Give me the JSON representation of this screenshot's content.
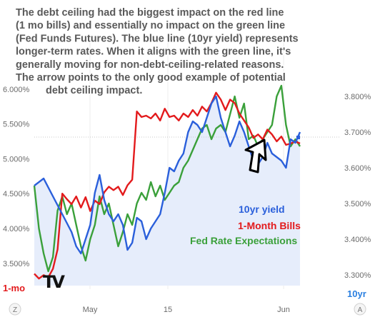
{
  "annotation": {
    "lines": [
      "The debt ceiling had the biggest impact on the red line",
      "(1 mo bills) and essentially no impact on the green line",
      "(Fed Funds Futures).  The blue line (10yr yield) represents",
      "longer-term rates.  When it aligns with the green line, it's",
      "generally moving for non-debt-ceiling-related reasons.",
      "The arrow points to the only good example of potential",
      "debt ceiling impact."
    ]
  },
  "footer": {
    "left_corner": "Z",
    "right_corner": "A",
    "left_axis_name": "1-mo",
    "right_axis_name": "10yr",
    "logo_text": "TV"
  },
  "colors": {
    "bills": "#e31a1c",
    "yield": "#2a5fdb",
    "fed": "#3aa03a",
    "fill": "#e6edfb"
  },
  "chart_data": {
    "type": "line",
    "x_tick_labels": [
      "May",
      "15",
      "Jun"
    ],
    "left_axis": {
      "ticks": [
        "3.500%",
        "4.000%",
        "4.500%",
        "5.000%",
        "5.500%",
        "6.000%"
      ],
      "ylim": [
        3.18,
        6.05
      ]
    },
    "right_axis": {
      "ticks": [
        "3.300%",
        "3.400%",
        "3.500%",
        "3.600%",
        "3.700%",
        "3.800%"
      ],
      "ylim": [
        3.27,
        3.83
      ]
    },
    "legend": [
      "10yr yield",
      "1-Month Bills",
      "Fed Rate Expectations"
    ],
    "series": [
      {
        "name": "10yr yield",
        "axis": "right",
        "points": [
          [
            0,
            3.55
          ],
          [
            2,
            3.57
          ],
          [
            4,
            3.52
          ],
          [
            6,
            3.47
          ],
          [
            8,
            3.42
          ],
          [
            9,
            3.38
          ],
          [
            10,
            3.36
          ],
          [
            11,
            3.4
          ],
          [
            12,
            3.44
          ],
          [
            13,
            3.53
          ],
          [
            14,
            3.58
          ],
          [
            15,
            3.51
          ],
          [
            16,
            3.47
          ],
          [
            17,
            3.45
          ],
          [
            18,
            3.47
          ],
          [
            19,
            3.44
          ],
          [
            20,
            3.37
          ],
          [
            21,
            3.39
          ],
          [
            22,
            3.46
          ],
          [
            23,
            3.45
          ],
          [
            24,
            3.4
          ],
          [
            25,
            3.43
          ],
          [
            26,
            3.45
          ],
          [
            27,
            3.47
          ],
          [
            28,
            3.53
          ],
          [
            29,
            3.6
          ],
          [
            30,
            3.59
          ],
          [
            31,
            3.62
          ],
          [
            32,
            3.64
          ],
          [
            33,
            3.7
          ],
          [
            34,
            3.73
          ],
          [
            35,
            3.72
          ],
          [
            36,
            3.7
          ],
          [
            37,
            3.74
          ],
          [
            38,
            3.78
          ],
          [
            39,
            3.8
          ],
          [
            40,
            3.74
          ],
          [
            41,
            3.7
          ],
          [
            42,
            3.66
          ],
          [
            43,
            3.69
          ],
          [
            44,
            3.73
          ],
          [
            45,
            3.7
          ],
          [
            46,
            3.66
          ],
          [
            47,
            3.62
          ],
          [
            48,
            3.61
          ],
          [
            49,
            3.63
          ],
          [
            50,
            3.67
          ],
          [
            51,
            3.64
          ],
          [
            52,
            3.63
          ],
          [
            53,
            3.62
          ],
          [
            54,
            3.6
          ],
          [
            55,
            3.68
          ],
          [
            56,
            3.67
          ],
          [
            57,
            3.7
          ]
        ]
      },
      {
        "name": "1-Month Bills",
        "axis": "left",
        "points": [
          [
            0,
            3.35
          ],
          [
            1,
            3.28
          ],
          [
            2,
            3.33
          ],
          [
            3,
            3.3
          ],
          [
            4,
            3.42
          ],
          [
            5,
            3.7
          ],
          [
            6,
            4.5
          ],
          [
            7,
            4.42
          ],
          [
            8,
            4.35
          ],
          [
            9,
            4.46
          ],
          [
            10,
            4.3
          ],
          [
            11,
            4.45
          ],
          [
            12,
            4.25
          ],
          [
            13,
            4.4
          ],
          [
            14,
            4.35
          ],
          [
            15,
            4.52
          ],
          [
            16,
            4.6
          ],
          [
            17,
            4.55
          ],
          [
            18,
            4.6
          ],
          [
            19,
            4.48
          ],
          [
            20,
            4.62
          ],
          [
            21,
            4.7
          ],
          [
            22,
            5.68
          ],
          [
            23,
            5.6
          ],
          [
            24,
            5.62
          ],
          [
            25,
            5.58
          ],
          [
            26,
            5.65
          ],
          [
            27,
            5.55
          ],
          [
            28,
            5.72
          ],
          [
            29,
            5.6
          ],
          [
            30,
            5.62
          ],
          [
            31,
            5.55
          ],
          [
            32,
            5.65
          ],
          [
            33,
            5.6
          ],
          [
            34,
            5.7
          ],
          [
            35,
            5.62
          ],
          [
            36,
            5.75
          ],
          [
            37,
            5.68
          ],
          [
            38,
            5.8
          ],
          [
            39,
            5.95
          ],
          [
            40,
            5.85
          ],
          [
            41,
            5.7
          ],
          [
            42,
            5.85
          ],
          [
            43,
            5.8
          ],
          [
            44,
            5.65
          ],
          [
            45,
            5.55
          ],
          [
            46,
            5.45
          ],
          [
            47,
            5.3
          ],
          [
            48,
            5.35
          ],
          [
            49,
            5.28
          ],
          [
            50,
            5.42
          ],
          [
            51,
            5.35
          ],
          [
            52,
            5.25
          ],
          [
            53,
            5.32
          ],
          [
            54,
            5.2
          ],
          [
            55,
            5.22
          ],
          [
            56,
            5.25
          ],
          [
            57,
            5.22
          ]
        ]
      },
      {
        "name": "Fed Rate Expectations",
        "axis": "right",
        "points": [
          [
            0,
            3.55
          ],
          [
            1,
            3.43
          ],
          [
            2,
            3.36
          ],
          [
            3,
            3.31
          ],
          [
            4,
            3.35
          ],
          [
            5,
            3.48
          ],
          [
            6,
            3.52
          ],
          [
            7,
            3.47
          ],
          [
            8,
            3.5
          ],
          [
            9,
            3.44
          ],
          [
            10,
            3.38
          ],
          [
            11,
            3.34
          ],
          [
            12,
            3.4
          ],
          [
            13,
            3.44
          ],
          [
            14,
            3.52
          ],
          [
            15,
            3.47
          ],
          [
            16,
            3.5
          ],
          [
            17,
            3.44
          ],
          [
            18,
            3.38
          ],
          [
            19,
            3.42
          ],
          [
            20,
            3.47
          ],
          [
            21,
            3.44
          ],
          [
            22,
            3.5
          ],
          [
            23,
            3.53
          ],
          [
            24,
            3.51
          ],
          [
            25,
            3.56
          ],
          [
            26,
            3.52
          ],
          [
            27,
            3.55
          ],
          [
            28,
            3.51
          ],
          [
            29,
            3.53
          ],
          [
            30,
            3.55
          ],
          [
            31,
            3.56
          ],
          [
            32,
            3.6
          ],
          [
            33,
            3.62
          ],
          [
            34,
            3.65
          ],
          [
            35,
            3.68
          ],
          [
            36,
            3.71
          ],
          [
            37,
            3.72
          ],
          [
            38,
            3.68
          ],
          [
            39,
            3.71
          ],
          [
            40,
            3.72
          ],
          [
            41,
            3.7
          ],
          [
            42,
            3.75
          ],
          [
            43,
            3.8
          ],
          [
            44,
            3.74
          ],
          [
            45,
            3.78
          ],
          [
            46,
            3.68
          ],
          [
            47,
            3.69
          ],
          [
            48,
            3.66
          ],
          [
            49,
            3.68
          ],
          [
            50,
            3.7
          ],
          [
            51,
            3.72
          ],
          [
            52,
            3.8
          ],
          [
            53,
            3.83
          ],
          [
            54,
            3.72
          ],
          [
            55,
            3.66
          ],
          [
            56,
            3.68
          ],
          [
            57,
            3.66
          ]
        ]
      }
    ]
  }
}
